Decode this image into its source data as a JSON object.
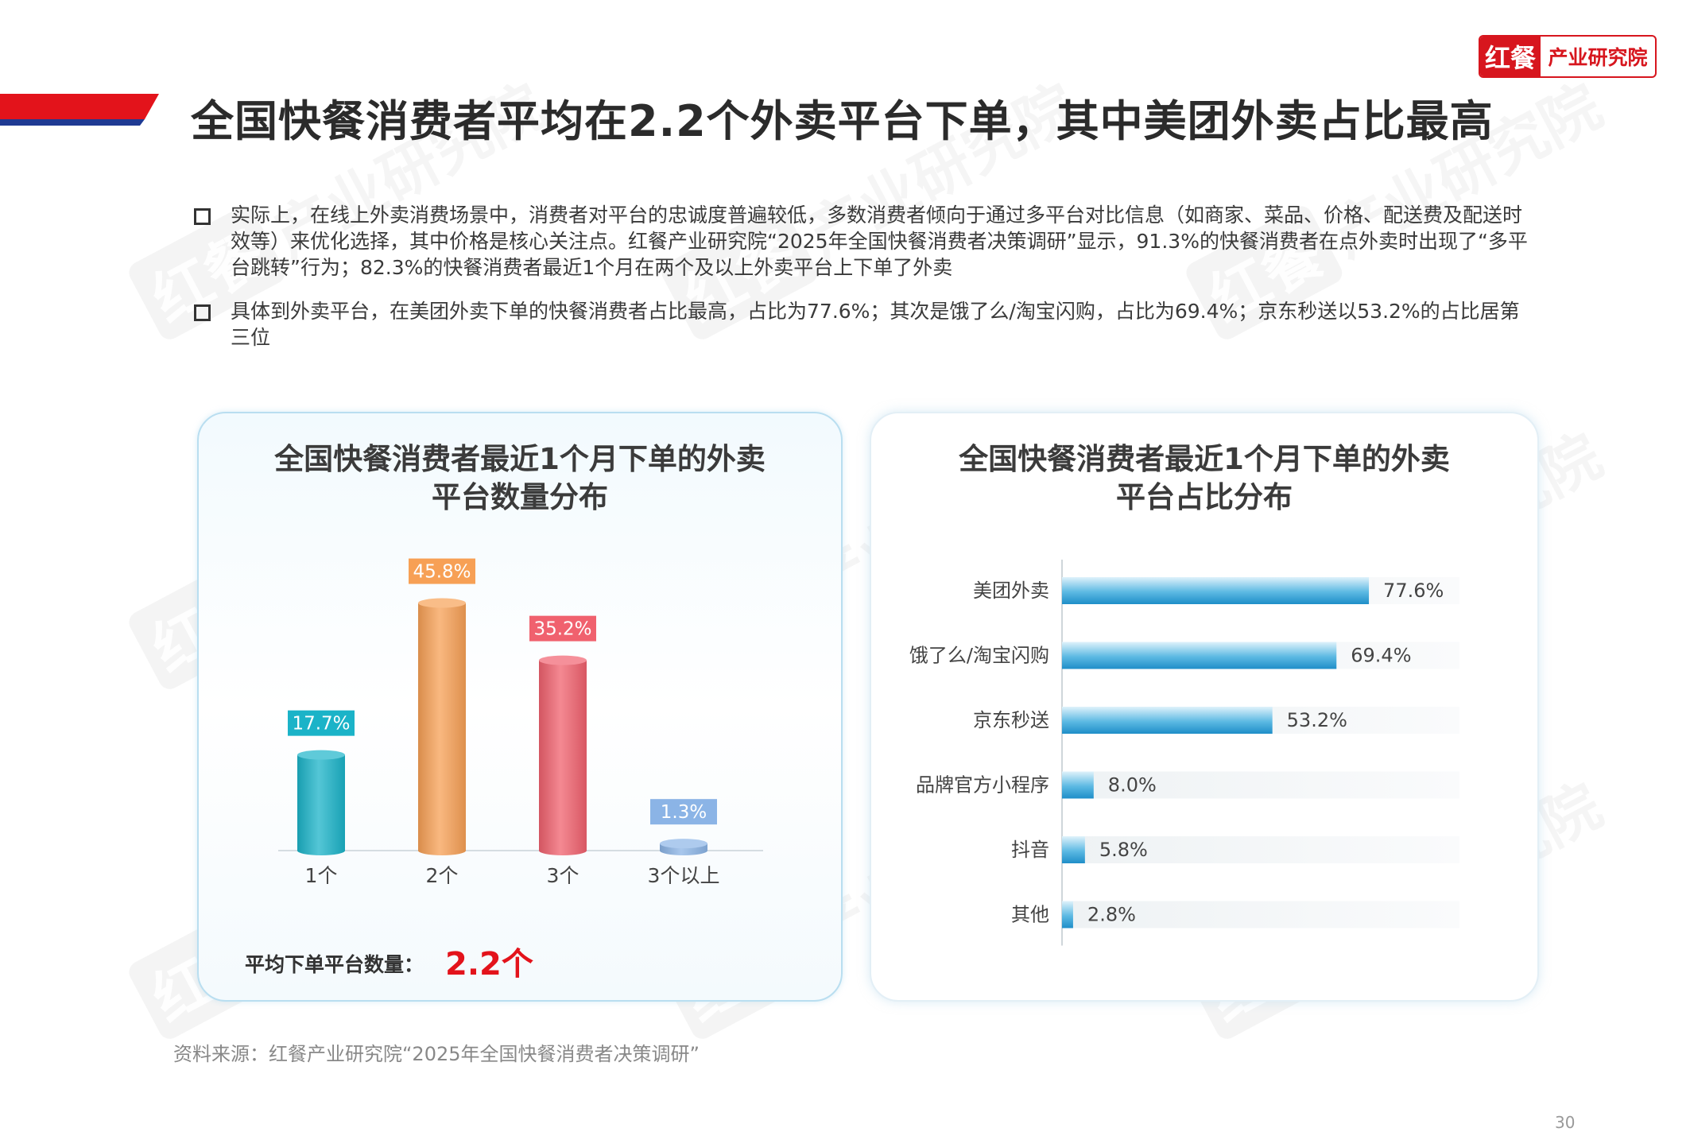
{
  "header": {
    "title": "全国快餐消费者平均在2.2个外卖平台下单，其中美团外卖占比最高",
    "logo_mark": "红餐",
    "logo_text": "产业研究院"
  },
  "watermark": {
    "mark": "红餐",
    "text": "产业研究院"
  },
  "bullets": [
    "实际上，在线上外卖消费场景中，消费者对平台的忠诚度普遍较低，多数消费者倾向于通过多平台对比信息（如商家、菜品、价格、配送费及配送时效等）来优化选择，其中价格是核心关注点。红餐产业研究院“2025年全国快餐消费者决策调研”显示，91.3%的快餐消费者在点外卖时出现了“多平台跳转”行为；82.3%的快餐消费者最近1个月在两个及以上外卖平台上下单了外卖",
    "具体到外卖平台，在美团外卖下单的快餐消费者占比最高，占比为77.6%；其次是饿了么/淘宝闪购，占比为69.4%；京东秒送以53.2%的占比居第三位"
  ],
  "left_panel": {
    "title_line1": "全国快餐消费者最近1个月下单的外卖",
    "title_line2": "平台数量分布",
    "avg_label": "平均下单平台数量：",
    "avg_value": "2.2个"
  },
  "right_panel": {
    "title_line1": "全国快餐消费者最近1个月下单的外卖",
    "title_line2": "平台占比分布"
  },
  "chart_data": [
    {
      "type": "bar",
      "title": "全国快餐消费者最近1个月下单的外卖平台数量分布",
      "categories": [
        "1个",
        "2个",
        "3个",
        "3个以上"
      ],
      "values": [
        17.7,
        45.8,
        35.2,
        1.3
      ],
      "labels": [
        "17.7%",
        "45.8%",
        "35.2%",
        "1.3%"
      ],
      "colors": [
        "#1bb3c8",
        "#f7a055",
        "#f0616e",
        "#8bb4e6"
      ],
      "ylim": [
        0,
        50
      ]
    },
    {
      "type": "bar",
      "orientation": "horizontal",
      "title": "全国快餐消费者最近1个月下单的外卖平台占比分布",
      "categories": [
        "美团外卖",
        "饿了么/淘宝闪购",
        "京东秒送",
        "品牌官方小程序",
        "抖音",
        "其他"
      ],
      "values": [
        77.6,
        69.4,
        53.2,
        8.0,
        5.8,
        2.8
      ],
      "labels": [
        "77.6%",
        "69.4%",
        "53.2%",
        "8.0%",
        "5.8%",
        "2.8%"
      ],
      "color": "#2a9fd6",
      "xlim": [
        0,
        100
      ]
    }
  ],
  "footer": {
    "source": "资料来源：红餐产业研究院“2025年全国快餐消费者决策调研”",
    "page": "30"
  }
}
